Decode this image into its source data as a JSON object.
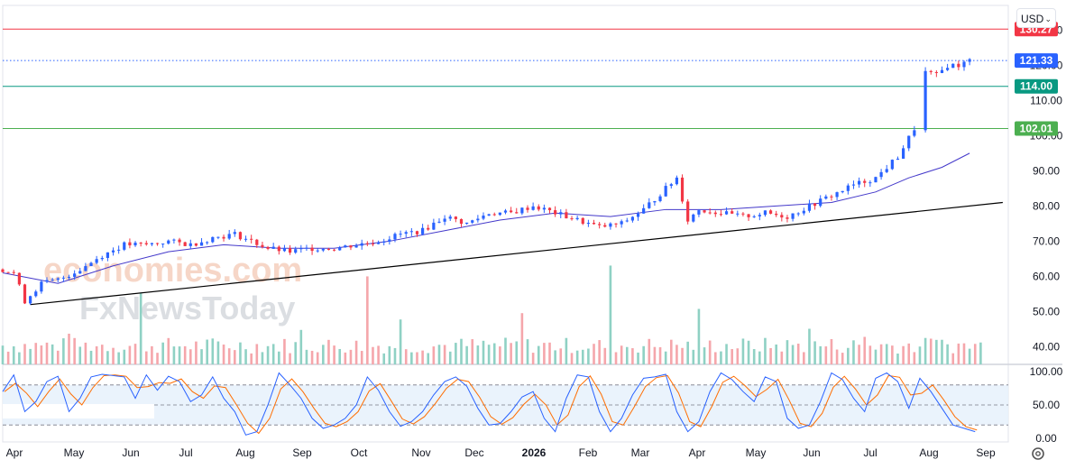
{
  "currency": {
    "label": "USD",
    "chevron_icon": "chevron-down-icon"
  },
  "settings_icon": "settings-icon",
  "watermark": {
    "line1": "economies.com",
    "line2": "FxNewsToday"
  },
  "chart_data": [
    {
      "type": "candlestick",
      "title": "",
      "y_ticks": [
        "130.00",
        "120.00",
        "110.00",
        "100.00",
        "90.00",
        "80.00",
        "70.00",
        "60.00",
        "50.00",
        "40.00"
      ],
      "ylim": [
        35,
        137
      ],
      "x_ticks": [
        "Apr",
        "May",
        "Jun",
        "Jul",
        "Aug",
        "Sep",
        "Oct",
        "Nov",
        "Dec",
        "2026",
        "Feb",
        "Mar",
        "Apr",
        "May",
        "Jun",
        "Jul",
        "Aug",
        "Sep"
      ],
      "colors": {
        "up": "#2962ff",
        "down": "#f23645",
        "vol_up": "#8fd1c4",
        "vol_down": "#f5a6ab",
        "ma": "#4338ca"
      },
      "price_path": [
        [
          0,
          62
        ],
        [
          2,
          61
        ],
        [
          4,
          53
        ],
        [
          7,
          58
        ],
        [
          10,
          59
        ],
        [
          14,
          62
        ],
        [
          18,
          66
        ],
        [
          22,
          69
        ],
        [
          26,
          69
        ],
        [
          30,
          70
        ],
        [
          34,
          69
        ],
        [
          38,
          71
        ],
        [
          42,
          72
        ],
        [
          45,
          70
        ],
        [
          48,
          68
        ],
        [
          52,
          67
        ],
        [
          56,
          68
        ],
        [
          60,
          68
        ],
        [
          64,
          69
        ],
        [
          68,
          70
        ],
        [
          72,
          72
        ],
        [
          76,
          73
        ],
        [
          80,
          77
        ],
        [
          84,
          75
        ],
        [
          88,
          78
        ],
        [
          92,
          78
        ],
        [
          96,
          80
        ],
        [
          100,
          78
        ],
        [
          104,
          76
        ],
        [
          108,
          74
        ],
        [
          112,
          75
        ],
        [
          116,
          79
        ],
        [
          120,
          85
        ],
        [
          122,
          88
        ],
        [
          124,
          76
        ],
        [
          126,
          79
        ],
        [
          130,
          78
        ],
        [
          134,
          77
        ],
        [
          138,
          78
        ],
        [
          142,
          77
        ],
        [
          146,
          80
        ],
        [
          150,
          83
        ],
        [
          154,
          86
        ],
        [
          158,
          88
        ],
        [
          162,
          94
        ],
        [
          165,
          102
        ],
        [
          167,
          118
        ],
        [
          169,
          117
        ],
        [
          171,
          120
        ],
        [
          173,
          120
        ],
        [
          175,
          121.33
        ]
      ],
      "lines": [
        {
          "name": "",
          "level": 130.27,
          "label": "130.27",
          "color": "#f23645"
        },
        {
          "name": "",
          "level": 121.33,
          "label": "121.33",
          "color": "#2962ff",
          "dotted": true
        },
        {
          "name": "",
          "level": 114.0,
          "label": "114.00",
          "color": "#089981"
        },
        {
          "name": "",
          "level": 102.01,
          "label": "102.01",
          "color": "#4caf50"
        }
      ],
      "trendline": {
        "from": [
          5,
          52
        ],
        "to": [
          181,
          81
        ]
      },
      "moving_average_points": [
        [
          0,
          61
        ],
        [
          10,
          58
        ],
        [
          20,
          63
        ],
        [
          30,
          67
        ],
        [
          40,
          69
        ],
        [
          50,
          68
        ],
        [
          60,
          68
        ],
        [
          70,
          70
        ],
        [
          80,
          73
        ],
        [
          90,
          76
        ],
        [
          100,
          78
        ],
        [
          110,
          77
        ],
        [
          120,
          79
        ],
        [
          130,
          79
        ],
        [
          140,
          80
        ],
        [
          150,
          81
        ],
        [
          158,
          84
        ],
        [
          164,
          88
        ],
        [
          170,
          91
        ],
        [
          175,
          95
        ]
      ],
      "volume_spikes": [
        [
          12,
          2.4
        ],
        [
          25,
          3.1
        ],
        [
          54,
          1.6
        ],
        [
          66,
          4.2
        ],
        [
          72,
          2.0
        ],
        [
          94,
          2.7
        ],
        [
          110,
          3.9
        ],
        [
          126,
          2.2
        ],
        [
          146,
          2.1
        ],
        [
          156,
          1.5
        ],
        [
          168,
          1.9
        ]
      ]
    },
    {
      "type": "line",
      "title": "",
      "y_ticks": [
        "100.00",
        "50.00",
        "0.00"
      ],
      "ylim": [
        0,
        100
      ],
      "band": [
        20,
        80
      ],
      "series": [
        {
          "name": "",
          "color": "#2962ff"
        },
        {
          "name": "",
          "color": "#ff6d00"
        }
      ],
      "k_values": [
        [
          0,
          70
        ],
        [
          2,
          95
        ],
        [
          4,
          40
        ],
        [
          6,
          55
        ],
        [
          8,
          85
        ],
        [
          10,
          93
        ],
        [
          12,
          40
        ],
        [
          14,
          60
        ],
        [
          16,
          92
        ],
        [
          18,
          96
        ],
        [
          20,
          94
        ],
        [
          22,
          92
        ],
        [
          24,
          60
        ],
        [
          26,
          95
        ],
        [
          28,
          72
        ],
        [
          30,
          93
        ],
        [
          32,
          85
        ],
        [
          34,
          55
        ],
        [
          36,
          65
        ],
        [
          38,
          92
        ],
        [
          40,
          60
        ],
        [
          42,
          40
        ],
        [
          44,
          5
        ],
        [
          46,
          10
        ],
        [
          48,
          50
        ],
        [
          50,
          98
        ],
        [
          52,
          80
        ],
        [
          54,
          60
        ],
        [
          56,
          30
        ],
        [
          58,
          15
        ],
        [
          60,
          20
        ],
        [
          62,
          30
        ],
        [
          64,
          50
        ],
        [
          66,
          92
        ],
        [
          68,
          72
        ],
        [
          70,
          40
        ],
        [
          72,
          18
        ],
        [
          74,
          25
        ],
        [
          76,
          40
        ],
        [
          78,
          65
        ],
        [
          80,
          85
        ],
        [
          82,
          92
        ],
        [
          84,
          78
        ],
        [
          86,
          45
        ],
        [
          88,
          20
        ],
        [
          90,
          22
        ],
        [
          92,
          40
        ],
        [
          94,
          62
        ],
        [
          96,
          70
        ],
        [
          98,
          30
        ],
        [
          100,
          10
        ],
        [
          102,
          60
        ],
        [
          104,
          95
        ],
        [
          106,
          92
        ],
        [
          108,
          40
        ],
        [
          110,
          10
        ],
        [
          112,
          30
        ],
        [
          114,
          65
        ],
        [
          116,
          90
        ],
        [
          118,
          92
        ],
        [
          120,
          96
        ],
        [
          122,
          40
        ],
        [
          124,
          10
        ],
        [
          126,
          25
        ],
        [
          128,
          70
        ],
        [
          130,
          98
        ],
        [
          132,
          88
        ],
        [
          134,
          70
        ],
        [
          136,
          55
        ],
        [
          138,
          92
        ],
        [
          140,
          85
        ],
        [
          142,
          30
        ],
        [
          144,
          15
        ],
        [
          146,
          20
        ],
        [
          148,
          55
        ],
        [
          150,
          98
        ],
        [
          152,
          88
        ],
        [
          154,
          60
        ],
        [
          156,
          40
        ],
        [
          158,
          90
        ],
        [
          160,
          98
        ],
        [
          162,
          85
        ],
        [
          164,
          45
        ],
        [
          166,
          90
        ],
        [
          168,
          70
        ],
        [
          170,
          45
        ],
        [
          172,
          20
        ],
        [
          174,
          15
        ],
        [
          176,
          10
        ]
      ]
    }
  ]
}
